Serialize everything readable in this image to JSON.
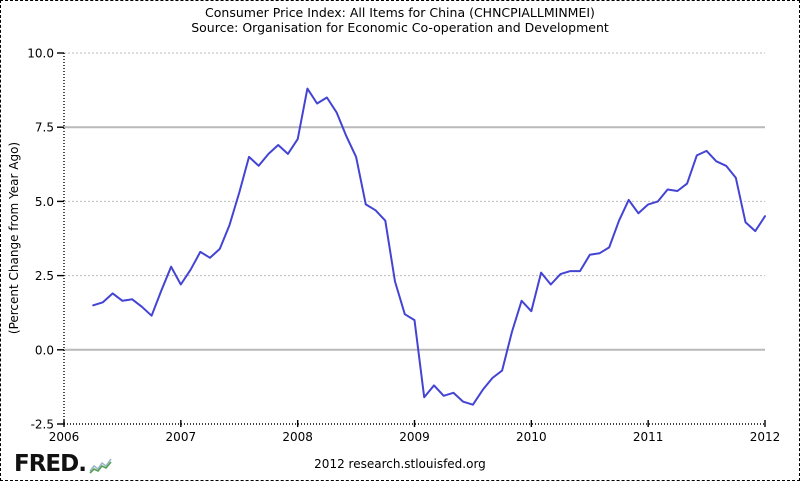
{
  "header": {
    "title": "Consumer Price Index: All Items for China (CHNCPIALLMINMEI)",
    "subtitle": "Source: Organisation for Economic Co-operation and Development"
  },
  "footer": {
    "logo_text": "FRED.",
    "credit": "2012 research.stlouisfed.org"
  },
  "colors": {
    "line": "#4444d4",
    "grid_solid": "#b9b9b9",
    "grid_dotted": "#bbbbbb",
    "axis": "#000000",
    "logo_green": "#55a055",
    "logo_blue": "#9db7c8"
  },
  "chart_data": {
    "type": "line",
    "title": "Consumer Price Index: All Items for China (CHNCPIALLMINMEI)",
    "subtitle": "Source: Organisation for Economic Co-operation and Development",
    "xlabel": "",
    "ylabel": "(Percent Change from Year Ago)",
    "xlim": [
      2006,
      2012
    ],
    "ylim": [
      -2.5,
      10.0
    ],
    "legend": "none",
    "grid": "horizontal-only",
    "x_ticks": [
      {
        "label": "2006",
        "v": 2006
      },
      {
        "label": "2007",
        "v": 2007
      },
      {
        "label": "2008",
        "v": 2008
      },
      {
        "label": "2009",
        "v": 2009
      },
      {
        "label": "2010",
        "v": 2010
      },
      {
        "label": "2011",
        "v": 2011
      },
      {
        "label": "2012",
        "v": 2012
      }
    ],
    "y_ticks": [
      {
        "label": "10.0",
        "v": 10.0
      },
      {
        "label": "7.5",
        "v": 7.5
      },
      {
        "label": "5.0",
        "v": 5.0
      },
      {
        "label": "2.5",
        "v": 2.5
      },
      {
        "label": "0.0",
        "v": 0.0
      },
      {
        "label": "-2.5",
        "v": -2.5
      }
    ],
    "y_gridlines": [
      {
        "v": 10.0,
        "style": "dotted"
      },
      {
        "v": 7.5,
        "style": "solid"
      },
      {
        "v": 5.0,
        "style": "dotted"
      },
      {
        "v": 2.5,
        "style": "dotted"
      },
      {
        "v": 0.0,
        "style": "solid"
      }
    ],
    "series": [
      {
        "name": "CHNCPIALLMINMEI",
        "frequency": "monthly",
        "start_year": 2006,
        "start_month": 4,
        "values": [
          1.5,
          1.6,
          1.9,
          1.65,
          1.7,
          1.45,
          1.15,
          2.0,
          2.8,
          2.2,
          2.7,
          3.3,
          3.1,
          3.4,
          4.2,
          5.3,
          6.5,
          6.2,
          6.6,
          6.9,
          6.6,
          7.1,
          8.8,
          8.3,
          8.5,
          8.0,
          7.2,
          6.5,
          4.9,
          4.7,
          4.35,
          2.3,
          1.2,
          1.0,
          -1.6,
          -1.2,
          -1.55,
          -1.45,
          -1.75,
          -1.85,
          -1.35,
          -0.95,
          -0.7,
          0.6,
          1.65,
          1.3,
          2.6,
          2.2,
          2.55,
          2.65,
          2.65,
          3.2,
          3.25,
          3.45,
          4.35,
          5.05,
          4.6,
          4.9,
          5.0,
          5.4,
          5.35,
          5.6,
          6.55,
          6.7,
          6.35,
          6.2,
          5.8,
          4.3,
          4.0,
          4.5
        ]
      }
    ]
  }
}
